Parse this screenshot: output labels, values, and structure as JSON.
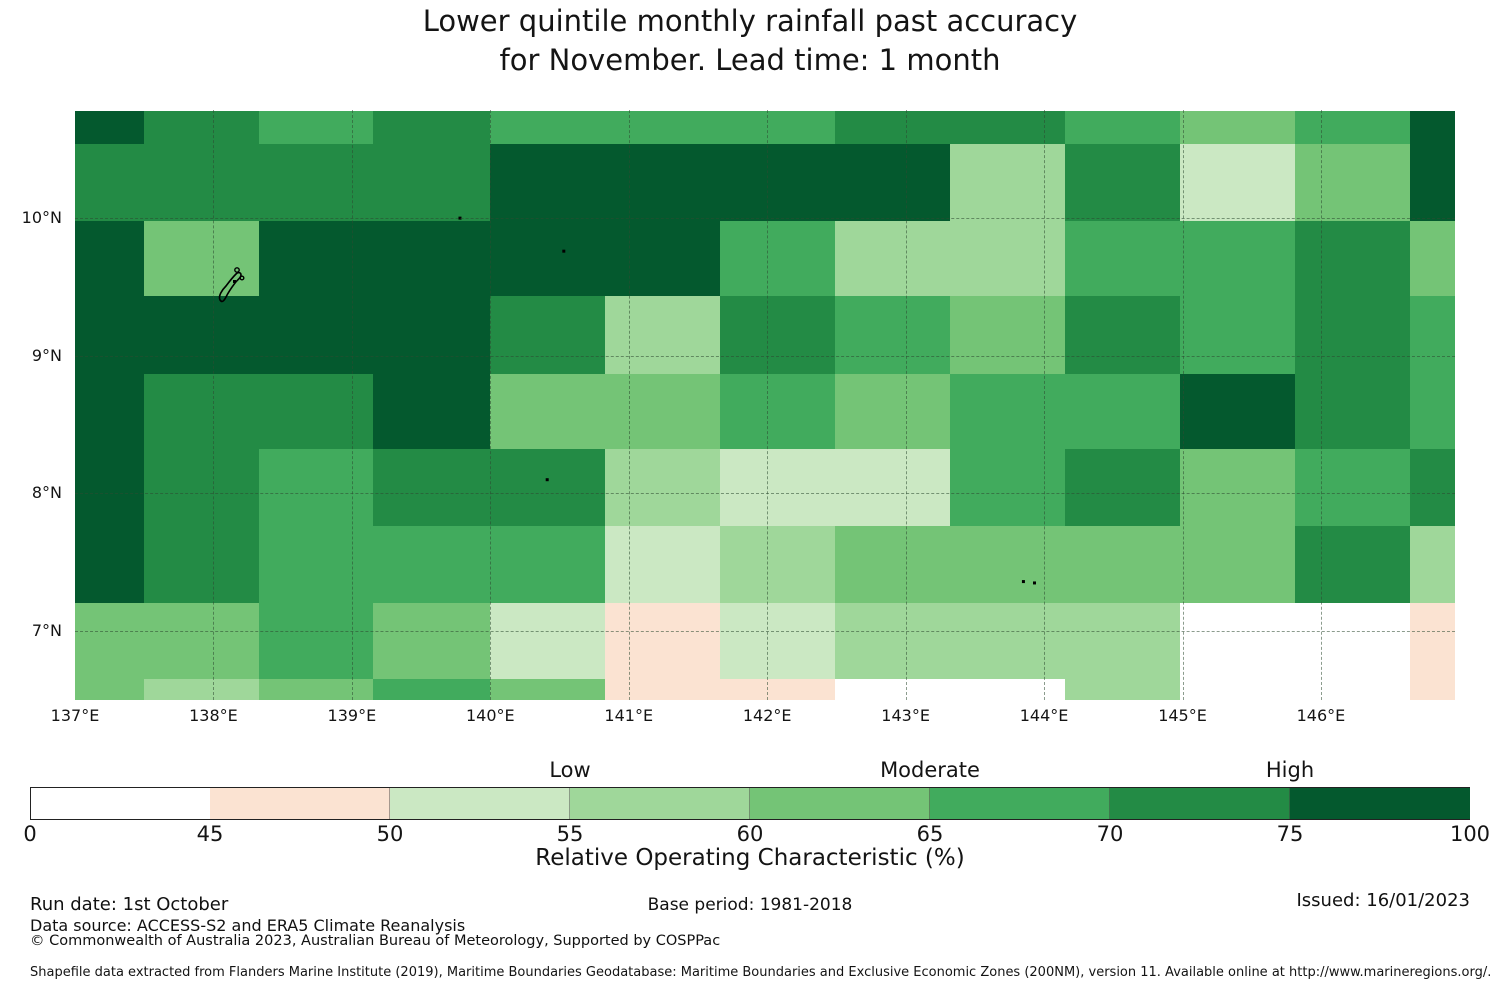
{
  "title": {
    "line1": "Lower quintile monthly rainfall past accuracy",
    "line2": "for November. Lead time: 1 month"
  },
  "chart_data": {
    "type": "heatmap",
    "title": "Lower quintile monthly rainfall past accuracy for November. Lead time: 1 month",
    "value_label": "Relative Operating Characteristic (%)",
    "region_extent": {
      "lon_min": 137.0,
      "lon_max": 146.97,
      "lat_min": 6.5,
      "lat_max": 10.78
    },
    "x_ticks": [
      {
        "lon": 137,
        "label": "137°E"
      },
      {
        "lon": 138,
        "label": "138°E"
      },
      {
        "lon": 139,
        "label": "139°E"
      },
      {
        "lon": 140,
        "label": "140°E"
      },
      {
        "lon": 141,
        "label": "141°E"
      },
      {
        "lon": 142,
        "label": "142°E"
      },
      {
        "lon": 143,
        "label": "143°E"
      },
      {
        "lon": 144,
        "label": "144°E"
      },
      {
        "lon": 145,
        "label": "145°E"
      },
      {
        "lon": 146,
        "label": "146°E"
      }
    ],
    "y_ticks": [
      {
        "lat": 10,
        "label": "10°N"
      },
      {
        "lat": 9,
        "label": "9°N"
      },
      {
        "lat": 8,
        "label": "8°N"
      },
      {
        "lat": 7,
        "label": "7°N"
      }
    ],
    "lon_gridlines": [
      138,
      139,
      140,
      141,
      142,
      143,
      144,
      145,
      146
    ],
    "lat_gridlines": [
      7,
      8,
      9,
      10
    ],
    "lon_edges": [
      137.0,
      137.5,
      138.33,
      139.15,
      140.0,
      140.83,
      141.66,
      142.49,
      143.32,
      144.15,
      144.98,
      145.81,
      146.64,
      146.97
    ],
    "lat_edges": [
      10.78,
      10.54,
      9.98,
      9.43,
      8.87,
      8.32,
      7.76,
      7.2,
      6.65,
      6.5
    ],
    "bin_ranges_roc_pct": [
      "0-45",
      "45-50",
      "50-55",
      "55-60",
      "60-65",
      "65-70",
      "70-75",
      "75-100"
    ],
    "palette": [
      "#ffffff",
      "#fbe3d2",
      "#cbe8c3",
      "#9fd79a",
      "#74c476",
      "#41ab5d",
      "#238b45",
      "#04592e"
    ],
    "grid_bins": [
      [
        7,
        6,
        5,
        6,
        5,
        5,
        5,
        6,
        6,
        5,
        4,
        5,
        7
      ],
      [
        6,
        6,
        6,
        6,
        7,
        7,
        7,
        7,
        3,
        6,
        2,
        4,
        7
      ],
      [
        7,
        4,
        7,
        7,
        7,
        7,
        5,
        3,
        3,
        5,
        5,
        6,
        4
      ],
      [
        7,
        7,
        7,
        7,
        6,
        3,
        6,
        5,
        4,
        6,
        5,
        6,
        5
      ],
      [
        7,
        6,
        6,
        7,
        4,
        4,
        5,
        4,
        5,
        5,
        7,
        6,
        5
      ],
      [
        7,
        6,
        5,
        6,
        6,
        3,
        2,
        2,
        5,
        6,
        4,
        5,
        6
      ],
      [
        7,
        6,
        5,
        5,
        5,
        2,
        3,
        4,
        4,
        4,
        4,
        6,
        3
      ],
      [
        4,
        4,
        5,
        4,
        2,
        1,
        2,
        3,
        3,
        3,
        0,
        0,
        1
      ],
      [
        4,
        3,
        4,
        5,
        4,
        1,
        1,
        0,
        0,
        3,
        0,
        0,
        1
      ]
    ],
    "island_dots_lonlat": [
      [
        139.77,
        10.01
      ],
      [
        140.52,
        9.77
      ],
      [
        140.4,
        8.11
      ],
      [
        143.84,
        7.37
      ],
      [
        143.92,
        7.36
      ]
    ],
    "legend_position": "bottom"
  },
  "colorbar": {
    "tick_labels": [
      "0",
      "45",
      "50",
      "55",
      "60",
      "65",
      "70",
      "75",
      "100"
    ],
    "segment_bins": [
      0,
      1,
      2,
      3,
      4,
      5,
      6,
      7
    ],
    "categories": [
      {
        "label": "Low",
        "anchor_tick_index": 3
      },
      {
        "label": "Moderate",
        "anchor_tick_index": 5
      },
      {
        "label": "High",
        "anchor_tick_index": 7
      }
    ],
    "axis_label": "Relative Operating Characteristic (%)"
  },
  "footer": {
    "run_date": "Run date: 1st October",
    "data_source": "Data source: ACCESS-S2 and ERA5 Climate Reanalysis",
    "copyright": "© Commonwealth of Australia 2023, Australian Bureau of Meteorology, Supported by COSPPac",
    "base_period": "Base period: 1981-2018",
    "issued": "Issued: 16/01/2023",
    "shapefile_note": "Shapefile data extracted from Flanders Marine Institute (2019), Maritime Boundaries Geodatabase: Maritime Boundaries and Exclusive Economic Zones (200NM), version 11. Available online at http://www.marineregions.org/."
  }
}
